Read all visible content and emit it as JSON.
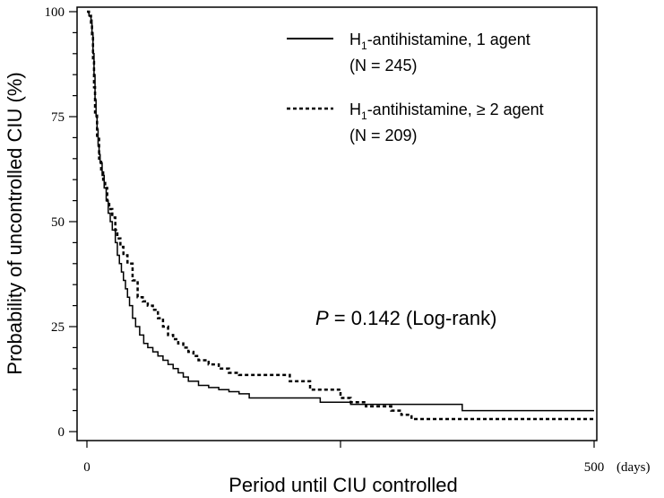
{
  "chart_data": {
    "type": "line",
    "xlabel": "Period until CIU controlled",
    "x_unit": "(days)",
    "ylabel": "Probability of uncontrolled CIU (%)",
    "xlim": [
      0,
      500
    ],
    "ylim": [
      0,
      100
    ],
    "x_ticks": [
      0,
      250,
      500
    ],
    "x_tick_labels": [
      "0",
      "",
      "500"
    ],
    "y_ticks": [
      0,
      25,
      50,
      75,
      100
    ],
    "y_tick_labels": [
      "0",
      "25",
      "50",
      "75",
      "100"
    ],
    "grid": false,
    "legend_position": "top-right",
    "annotation": {
      "p": "P",
      "rest": " = 0.142 (Log-rank)"
    },
    "series": [
      {
        "name": "H1-antihistamine, 1 agent",
        "legend": {
          "label_pre": "H",
          "label_sub": "1",
          "label_post": "-antihistamine, 1 agent",
          "n": "(N = 245)"
        },
        "style": "solid",
        "x": [
          0,
          2,
          4,
          5,
          6,
          7,
          8,
          9,
          10,
          11,
          12,
          13,
          15,
          17,
          19,
          21,
          23,
          25,
          28,
          30,
          32,
          34,
          36,
          38,
          40,
          42,
          45,
          48,
          52,
          56,
          60,
          65,
          70,
          75,
          80,
          85,
          90,
          95,
          100,
          110,
          120,
          130,
          140,
          150,
          160,
          180,
          200,
          230,
          260,
          290,
          320,
          350,
          360,
          370,
          500
        ],
        "y": [
          100,
          99,
          98,
          95,
          90,
          85,
          79,
          75,
          72,
          68,
          66,
          64,
          61,
          58,
          55,
          52,
          50,
          48,
          45,
          42,
          40,
          38,
          36,
          34,
          32,
          30,
          27,
          25,
          23,
          21,
          20,
          19,
          18,
          17,
          16,
          15,
          14,
          13,
          12,
          11,
          10.5,
          10,
          9.5,
          9,
          8,
          8,
          8,
          7,
          6.5,
          6.5,
          6.5,
          6.5,
          6.5,
          5,
          5
        ]
      },
      {
        "name": "H1-antihistamine, ≥ 2 agent",
        "legend": {
          "label_pre": "H",
          "label_sub": "1",
          "label_post": "-antihistamine, ≥ 2 agent",
          "n": "(N = 209)"
        },
        "style": "dashed",
        "x": [
          0,
          2,
          4,
          5,
          6,
          7,
          8,
          10,
          12,
          14,
          16,
          18,
          20,
          22,
          25,
          28,
          30,
          33,
          36,
          40,
          45,
          50,
          55,
          60,
          65,
          70,
          75,
          80,
          85,
          90,
          95,
          100,
          105,
          110,
          120,
          130,
          140,
          150,
          160,
          175,
          185,
          200,
          220,
          235,
          250,
          260,
          275,
          285,
          300,
          310,
          320,
          500
        ],
        "y": [
          100,
          99,
          97,
          94,
          88,
          82,
          76,
          70,
          65,
          62,
          60,
          58,
          55,
          53,
          51,
          48,
          46,
          44,
          42,
          40,
          36,
          32,
          31,
          30,
          29,
          27,
          25,
          23,
          22,
          21,
          20,
          19,
          18,
          17,
          16,
          15,
          14,
          13.5,
          13.5,
          13.5,
          13.5,
          12,
          10,
          10,
          8,
          7,
          6,
          6,
          5,
          4,
          3,
          3
        ]
      }
    ]
  }
}
